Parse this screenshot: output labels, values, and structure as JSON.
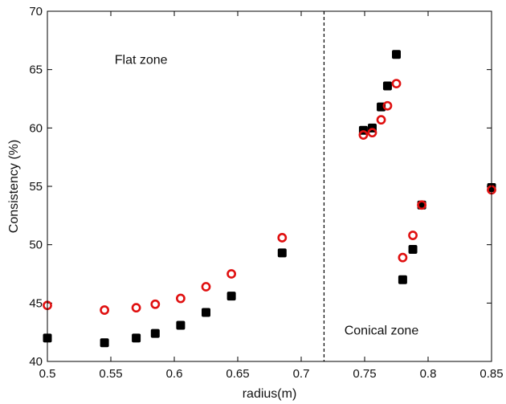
{
  "chart_data": {
    "type": "scatter",
    "title": "",
    "xlabel": "radius(m)",
    "ylabel": "Consistency (%)",
    "xlim": [
      0.5,
      0.85
    ],
    "ylim": [
      40,
      70
    ],
    "xticks": [
      "0.5",
      "0.55",
      "0.6",
      "0.65",
      "0.7",
      "0.75",
      "0.8",
      "0.85"
    ],
    "yticks": [
      "40",
      "45",
      "50",
      "55",
      "60",
      "65",
      "70"
    ],
    "grid": false,
    "legend": "none",
    "divider_x": 0.718,
    "annotations": [
      {
        "text": "Flat zone",
        "x": 0.553,
        "y": 65.5
      },
      {
        "text": "Conical zone",
        "x": 0.734,
        "y": 42.3
      }
    ],
    "series": [
      {
        "marker": "filled-square",
        "color": "#000000",
        "points": [
          [
            0.5,
            42.0
          ],
          [
            0.545,
            41.6
          ],
          [
            0.57,
            42.0
          ],
          [
            0.585,
            42.4
          ],
          [
            0.605,
            43.1
          ],
          [
            0.625,
            44.2
          ],
          [
            0.645,
            45.6
          ],
          [
            0.685,
            49.3
          ],
          [
            0.749,
            59.8
          ],
          [
            0.756,
            60.0
          ],
          [
            0.763,
            61.8
          ],
          [
            0.768,
            63.6
          ],
          [
            0.775,
            66.3
          ],
          [
            0.78,
            47.0
          ],
          [
            0.788,
            49.6
          ],
          [
            0.795,
            53.4
          ],
          [
            0.85,
            54.9
          ]
        ]
      },
      {
        "marker": "open-circle",
        "color": "#e01010",
        "points": [
          [
            0.5,
            44.8
          ],
          [
            0.545,
            44.4
          ],
          [
            0.57,
            44.6
          ],
          [
            0.585,
            44.9
          ],
          [
            0.605,
            45.4
          ],
          [
            0.625,
            46.4
          ],
          [
            0.645,
            47.5
          ],
          [
            0.685,
            50.6
          ],
          [
            0.749,
            59.4
          ],
          [
            0.756,
            59.6
          ],
          [
            0.763,
            60.7
          ],
          [
            0.768,
            61.9
          ],
          [
            0.775,
            63.8
          ],
          [
            0.78,
            48.9
          ],
          [
            0.788,
            50.8
          ],
          [
            0.795,
            53.4
          ],
          [
            0.85,
            54.7
          ]
        ]
      }
    ]
  }
}
